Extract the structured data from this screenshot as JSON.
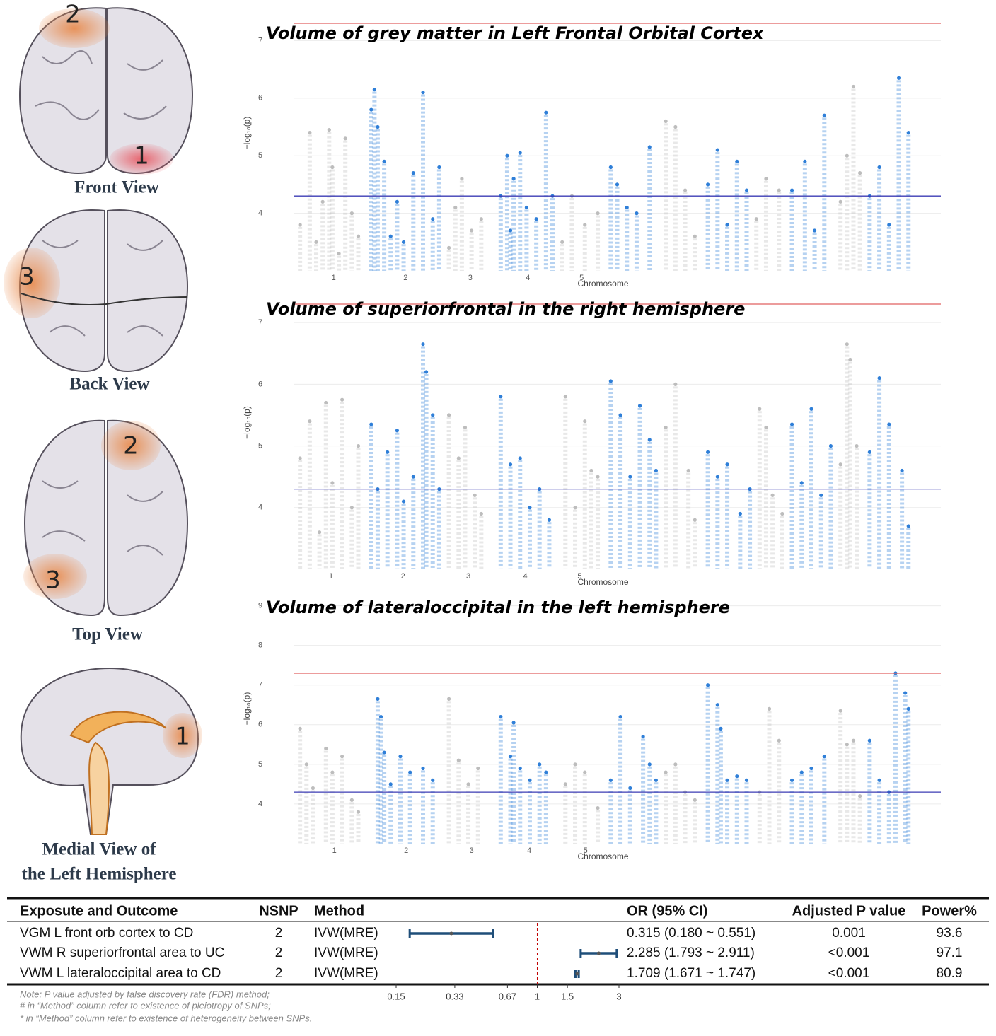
{
  "brain_panels": [
    {
      "caption": [
        "Front View"
      ],
      "regions": [
        "2",
        "1"
      ]
    },
    {
      "caption": [
        "Back  View"
      ],
      "regions": [
        "3"
      ]
    },
    {
      "caption": [
        "Top View"
      ],
      "regions": [
        "2",
        "3"
      ]
    },
    {
      "caption": [
        "Medial View of",
        "the Left Hemisphere"
      ],
      "regions": [
        "1"
      ]
    }
  ],
  "chart_data": [
    {
      "type": "manhattan",
      "title": "Volume of grey matter in Left Frontal Orbital Cortex",
      "x_label": "Chromosome",
      "y_label": "−log₁₀(p)",
      "xlim": [
        0,
        100
      ],
      "xticks": [
        {
          "value": 6.2,
          "label": "1"
        },
        {
          "value": 17.3,
          "label": "2"
        },
        {
          "value": 27.3,
          "label": "3"
        },
        {
          "value": 36.2,
          "label": "4"
        },
        {
          "value": 44.5,
          "label": "5"
        }
      ],
      "ylim": [
        3,
        7.3
      ],
      "yticks": [
        4,
        5,
        6,
        7
      ],
      "grid": true,
      "hlines": [
        {
          "value": 7.3,
          "color": "#e06060"
        },
        {
          "value": 4.3,
          "color": "#3c3cb4"
        }
      ],
      "series": [
        {
          "color": "#bdbdbd",
          "x": [
            1,
            2.5,
            3.5,
            4.5,
            5.5,
            6,
            7,
            8,
            9,
            10,
            24,
            25,
            26,
            27.5,
            29,
            41.5,
            43,
            45,
            47,
            57.5,
            59,
            60.5,
            62,
            71.5,
            73,
            75,
            84.5,
            85.5,
            86.5,
            87.5
          ],
          "values": [
            3.8,
            5.4,
            3.5,
            4.2,
            5.45,
            4.8,
            3.3,
            5.3,
            4.0,
            3.6,
            3.4,
            4.1,
            4.6,
            3.7,
            3.9,
            3.5,
            4.3,
            3.8,
            4.0,
            5.6,
            5.5,
            4.4,
            3.6,
            3.9,
            4.6,
            4.4,
            4.2,
            5.0,
            6.2,
            4.7
          ]
        },
        {
          "color": "#2f7fd8",
          "x": [
            12,
            12.5,
            13,
            14,
            15,
            16,
            17,
            18.5,
            20,
            21.5,
            22.5,
            32,
            33,
            33.5,
            34,
            35,
            36,
            37.5,
            39,
            40,
            49,
            50,
            51.5,
            53,
            55,
            64,
            65.5,
            67,
            68.5,
            70,
            77,
            79,
            80.5,
            82,
            89,
            90.5,
            92,
            93.5,
            95
          ],
          "values": [
            5.8,
            6.15,
            5.5,
            4.9,
            3.6,
            4.2,
            3.5,
            4.7,
            6.1,
            3.9,
            4.8,
            4.3,
            5.0,
            3.7,
            4.6,
            5.05,
            4.1,
            3.9,
            5.75,
            4.3,
            4.8,
            4.5,
            4.1,
            4.0,
            5.15,
            4.5,
            5.1,
            3.8,
            4.9,
            4.4,
            4.4,
            4.9,
            3.7,
            5.7,
            4.3,
            4.8,
            3.8,
            6.35,
            5.4
          ]
        }
      ]
    },
    {
      "type": "manhattan",
      "title": "Volume of superiorfrontal in the right hemisphere",
      "x_label": "Chromosome",
      "y_label": "−log₁₀(p)",
      "xlim": [
        0,
        100
      ],
      "xticks": [
        {
          "value": 5.8,
          "label": "1"
        },
        {
          "value": 16.9,
          "label": "2"
        },
        {
          "value": 27.0,
          "label": "3"
        },
        {
          "value": 35.8,
          "label": "4"
        },
        {
          "value": 44.2,
          "label": "5"
        }
      ],
      "ylim": [
        3,
        7.3
      ],
      "yticks": [
        4,
        5,
        6,
        7
      ],
      "grid": true,
      "hlines": [
        {
          "value": 7.3,
          "color": "#e06060"
        },
        {
          "value": 4.3,
          "color": "#3c3cb4"
        }
      ],
      "series": [
        {
          "color": "#bdbdbd",
          "x": [
            1,
            2.5,
            4,
            5,
            6,
            7.5,
            9,
            10,
            24,
            25.5,
            26.5,
            28,
            29,
            42,
            43.5,
            45,
            47,
            57.5,
            59,
            61,
            62,
            72,
            74,
            75.5,
            84.5,
            85.5,
            86,
            87,
            73,
            46
          ],
          "values": [
            4.8,
            5.4,
            3.6,
            5.7,
            4.4,
            5.75,
            4.0,
            5.0,
            5.5,
            4.8,
            5.3,
            4.2,
            3.9,
            5.8,
            4.0,
            5.4,
            4.5,
            5.3,
            6.0,
            4.6,
            3.8,
            5.6,
            4.2,
            3.9,
            4.7,
            6.65,
            6.4,
            5.0,
            5.3,
            4.6
          ]
        },
        {
          "color": "#2f7fd8",
          "x": [
            12,
            13,
            14.5,
            16,
            17,
            18.5,
            20,
            20.5,
            21.5,
            22.5,
            32,
            33.5,
            35,
            36.5,
            38,
            39.5,
            49,
            50.5,
            52,
            53.5,
            55,
            56,
            64,
            65.5,
            67,
            69,
            70.5,
            77,
            78.5,
            80,
            81.5,
            83,
            89,
            90.5,
            92,
            94,
            95
          ],
          "values": [
            5.35,
            4.3,
            4.9,
            5.25,
            4.1,
            4.5,
            6.65,
            6.2,
            5.5,
            4.3,
            5.8,
            4.7,
            4.8,
            4.0,
            4.3,
            3.8,
            6.05,
            5.5,
            4.5,
            5.65,
            5.1,
            4.6,
            4.9,
            4.5,
            4.7,
            3.9,
            4.3,
            5.35,
            4.4,
            5.6,
            4.2,
            5.0,
            4.9,
            6.1,
            5.35,
            4.6,
            3.7
          ]
        }
      ]
    },
    {
      "type": "manhattan",
      "title": "Volume of lateraloccipital in the left hemisphere",
      "x_label": "Chromosome",
      "y_label": "−log₁₀(p)",
      "xlim": [
        0,
        100
      ],
      "xticks": [
        {
          "value": 6.3,
          "label": "1"
        },
        {
          "value": 17.4,
          "label": "2"
        },
        {
          "value": 27.5,
          "label": "3"
        },
        {
          "value": 36.4,
          "label": "4"
        },
        {
          "value": 45.1,
          "label": "5"
        }
      ],
      "ylim": [
        3,
        9.1
      ],
      "yticks": [
        4,
        5,
        6,
        7,
        8,
        9
      ],
      "grid": true,
      "hlines": [
        {
          "value": 7.3,
          "color": "#e06060"
        },
        {
          "value": 4.3,
          "color": "#3c3cb4"
        }
      ],
      "series": [
        {
          "color": "#bdbdbd",
          "x": [
            1,
            2,
            3,
            5,
            6,
            7.5,
            9,
            10,
            24,
            25.5,
            27,
            28.5,
            42,
            43.5,
            45,
            47,
            57.5,
            59,
            60.5,
            62,
            72,
            73.5,
            75,
            84.5,
            85.5,
            86.5,
            87.5
          ],
          "values": [
            5.9,
            5.0,
            4.4,
            5.4,
            4.8,
            5.2,
            4.1,
            3.8,
            6.65,
            5.1,
            4.5,
            4.9,
            4.5,
            5.0,
            4.8,
            3.9,
            4.8,
            5.0,
            4.3,
            4.1,
            4.3,
            6.4,
            5.6,
            6.35,
            5.5,
            5.6,
            4.2
          ]
        },
        {
          "color": "#2f7fd8",
          "x": [
            13,
            13.5,
            14,
            15,
            16.5,
            18,
            20,
            21.5,
            32,
            33.5,
            34,
            35,
            36.5,
            38,
            39,
            49,
            50.5,
            52,
            54,
            55,
            56,
            64,
            65.5,
            66,
            67,
            68.5,
            70,
            77,
            78.5,
            80,
            82,
            89,
            90.5,
            92,
            93,
            94.5,
            95
          ],
          "values": [
            6.65,
            6.2,
            5.3,
            4.5,
            5.2,
            4.8,
            4.9,
            4.6,
            6.2,
            5.2,
            6.05,
            4.9,
            4.6,
            5.0,
            4.8,
            4.6,
            6.2,
            4.4,
            5.7,
            5.0,
            4.6,
            7.0,
            6.5,
            5.9,
            4.6,
            4.7,
            4.6,
            4.6,
            4.8,
            4.9,
            5.2,
            5.6,
            4.6,
            4.3,
            7.3,
            6.8,
            6.4
          ]
        }
      ]
    },
    {
      "type": "forest",
      "columns": [
        "Exposute and Outcome",
        "NSNP",
        "Method",
        "OR (95% CI)",
        "Adjusted P value",
        "Power%"
      ],
      "rows": [
        {
          "exposure": "VGM L front orb cortex to CD",
          "nsnp": 2,
          "method": "IVW(MRE)",
          "or": 0.315,
          "lo": 0.18,
          "hi": 0.551,
          "or_label": "0.315 (0.180 ~ 0.551)",
          "p": "0.001",
          "power": 93.6
        },
        {
          "exposure": "VWM R superiorfrontal area to UC",
          "nsnp": 2,
          "method": "IVW(MRE)",
          "or": 2.285,
          "lo": 1.793,
          "hi": 2.911,
          "or_label": "2.285 (1.793 ~ 2.911)",
          "p": "<0.001",
          "power": 97.1
        },
        {
          "exposure": "VWM L lateraloccipital area to CD",
          "nsnp": 2,
          "method": "IVW(MRE)",
          "or": 1.709,
          "lo": 1.671,
          "hi": 1.747,
          "or_label": "1.709 (1.671 ~ 1.747)",
          "p": "<0.001",
          "power": 80.9
        }
      ],
      "xlim": [
        0.15,
        3
      ],
      "xticks": [
        0.15,
        0.33,
        0.67,
        1,
        1.5,
        3
      ],
      "log_x": true,
      "reference": 1,
      "reference_color": "#c00000",
      "color": "#1f4e79",
      "notes": [
        "Note: P value adjusted by false discovery rate (FDR) method;",
        "# in “Method” column refer to existence of pleiotropy of SNPs;",
        "* in “Method” column refer to existence of heterogeneity between SNPs."
      ]
    }
  ]
}
